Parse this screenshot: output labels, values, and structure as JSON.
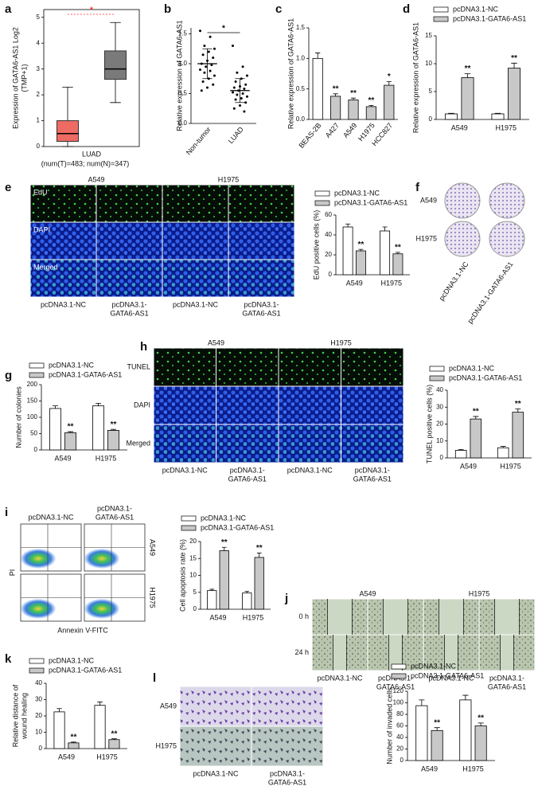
{
  "chart_data": [
    {
      "type": "box",
      "panel": "a",
      "ylabel": [
        "Expression of GATA6-AS1 Log2",
        "(TMP+1)"
      ],
      "xlabel": "LUAD",
      "subtitle": "(num(T)=483; num(N)=347)",
      "ylim": [
        0,
        5.3
      ],
      "yticks": [
        0,
        1,
        2,
        3,
        4,
        5
      ],
      "boxes": [
        {
          "color": "#ee6b63",
          "q1": 0.2,
          "median": 0.5,
          "q3": 1.0,
          "whisker_low": 0,
          "whisker_high": 2.3
        },
        {
          "color": "#7a7a7a",
          "q1": 2.6,
          "median": 3.0,
          "q3": 3.7,
          "whisker_low": 1.7,
          "whisker_high": 4.8
        }
      ],
      "significance": {
        "label": "*",
        "color": "#ff2a2a"
      }
    },
    {
      "type": "dot",
      "panel": "b",
      "ylabel": [
        "Relative expression of GATA6-AS1"
      ],
      "categories": [
        "Non-tumor",
        "LUAD"
      ],
      "ylim": [
        0,
        1.6
      ],
      "yticks": [
        {
          "value": 0,
          "label": "0.0"
        },
        {
          "value": 0.5,
          "label": "0.5"
        },
        {
          "value": 1,
          "label": "1.0"
        },
        {
          "value": 1.5,
          "label": "1.5"
        }
      ],
      "values": [
        1.0,
        0.55
      ],
      "errors": [
        0.25,
        0.2
      ],
      "points": [
        [
          1.55,
          1.45,
          1.3,
          1.25,
          1.2,
          1.15,
          1.1,
          1.05,
          1.0,
          0.98,
          0.95,
          0.9,
          0.88,
          0.85,
          0.8,
          0.75,
          0.7,
          0.65,
          0.6,
          0.55
        ],
        [
          1.3,
          0.95,
          0.85,
          0.8,
          0.75,
          0.7,
          0.65,
          0.62,
          0.6,
          0.58,
          0.55,
          0.52,
          0.5,
          0.48,
          0.45,
          0.42,
          0.4,
          0.35,
          0.3,
          0.25,
          0.2
        ]
      ],
      "significance": {
        "label": "*",
        "color": "#000000"
      }
    },
    {
      "type": "bar",
      "panel": "c",
      "ylabel": [
        "Relative expression of GATA6-AS1"
      ],
      "categories": [
        "BEAS-2B",
        "A427",
        "A549",
        "H1975",
        "HCC827"
      ],
      "ylim": [
        0,
        1.5
      ],
      "yticks": [
        {
          "value": 0,
          "label": "0.0"
        },
        {
          "value": 0.5,
          "label": "0.5"
        },
        {
          "value": 1,
          "label": "1.0"
        },
        {
          "value": 1.5,
          "label": "1.5"
        }
      ],
      "values": [
        1.0,
        0.38,
        0.32,
        0.21,
        0.56
      ],
      "errors": [
        0.09,
        0.04,
        0.03,
        0.02,
        0.06
      ],
      "colors": [
        "#ffffff",
        "#c8c8c8",
        "#c8c8c8",
        "#c8c8c8",
        "#c8c8c8"
      ],
      "annotations": [
        null,
        "**",
        "**",
        "**",
        "*"
      ]
    },
    {
      "type": "bar",
      "panel": "d",
      "ylabel": [
        "Relative expression of GATA6-AS1"
      ],
      "categories": [
        "A549",
        "H1975"
      ],
      "ylim": [
        0,
        15
      ],
      "yticks": [
        0,
        5,
        10,
        15
      ],
      "series": [
        {
          "name": "pcDNA3.1-NC",
          "color": "#ffffff",
          "values": [
            1.0,
            1.0
          ],
          "errors": [
            0.1,
            0.1
          ]
        },
        {
          "name": "pcDNA3.1-GATA6-AS1",
          "color": "#c8c8c8",
          "values": [
            7.5,
            9.2
          ],
          "errors": [
            0.7,
            0.9
          ],
          "annotations": [
            "**",
            "**"
          ]
        }
      ]
    },
    {
      "type": "bar",
      "ylabel": [
        "EdU positive cells (%)"
      ],
      "categories": [
        "A549",
        "H1975"
      ],
      "ylim": [
        0,
        60
      ],
      "yticks": [
        0,
        20,
        40,
        60
      ],
      "series": [
        {
          "name": "pcDNA3.1-NC",
          "color": "#ffffff",
          "values": [
            48,
            44
          ],
          "errors": [
            3,
            4
          ]
        },
        {
          "name": "pcDNA3.1-GATA6-AS1",
          "color": "#c8c8c8",
          "values": [
            24,
            21
          ],
          "errors": [
            1.5,
            1.5
          ],
          "annotations": [
            "**",
            "**"
          ]
        }
      ]
    },
    {
      "type": "bar",
      "panel": "g",
      "ylabel": [
        "Number of colonies"
      ],
      "categories": [
        "A549",
        "H1975"
      ],
      "ylim": [
        0,
        200
      ],
      "yticks": [
        0,
        50,
        100,
        150,
        200
      ],
      "series": [
        {
          "name": "pcDNA3.1-NC",
          "color": "#ffffff",
          "values": [
            127,
            135
          ],
          "errors": [
            8,
            8
          ]
        },
        {
          "name": "pcDNA3.1-GATA6-AS1",
          "color": "#c8c8c8",
          "values": [
            53,
            60
          ],
          "errors": [
            3,
            3
          ],
          "annotations": [
            "**",
            "**"
          ]
        }
      ]
    },
    {
      "type": "bar",
      "ylabel": [
        "TUNEL positive cells (%)"
      ],
      "categories": [
        "A549",
        "H1975"
      ],
      "ylim": [
        0,
        40
      ],
      "yticks": [
        0,
        10,
        20,
        30,
        40
      ],
      "series": [
        {
          "name": "pcDNA3.1-NC",
          "color": "#ffffff",
          "values": [
            4.5,
            6
          ],
          "errors": [
            0.5,
            0.8
          ]
        },
        {
          "name": "pcDNA3.1-GATA6-AS1",
          "color": "#c8c8c8",
          "values": [
            23,
            27
          ],
          "errors": [
            1.5,
            2
          ],
          "annotations": [
            "**",
            "**"
          ]
        }
      ]
    },
    {
      "type": "bar",
      "ylabel": [
        "Cell apoptosis rate (%)"
      ],
      "categories": [
        "A549",
        "H1975"
      ],
      "ylim": [
        0,
        20
      ],
      "yticks": [
        0,
        5,
        10,
        15,
        20
      ],
      "series": [
        {
          "name": "pcDNA3.1-NC",
          "color": "#ffffff",
          "values": [
            5.5,
            4.8
          ],
          "errors": [
            0.4,
            0.5
          ]
        },
        {
          "name": "pcDNA3.1-GATA6-AS1",
          "color": "#c8c8c8",
          "values": [
            17.3,
            15.3
          ],
          "errors": [
            1.0,
            1.3
          ],
          "annotations": [
            "**",
            "**"
          ]
        }
      ]
    },
    {
      "type": "bar",
      "panel": "k",
      "ylabel": [
        "Relative distance of",
        "wound healing"
      ],
      "categories": [
        "A549",
        "H1975"
      ],
      "ylim": [
        0,
        40
      ],
      "yticks": [
        0,
        10,
        20,
        30,
        40
      ],
      "series": [
        {
          "name": "pcDNA3.1-NC",
          "color": "#ffffff",
          "values": [
            22.5,
            26.5
          ],
          "errors": [
            2,
            2
          ]
        },
        {
          "name": "pcDNA3.1-GATA6-AS1",
          "color": "#c8c8c8",
          "values": [
            3.5,
            5.5
          ],
          "errors": [
            0.5,
            0.5
          ],
          "annotations": [
            "**",
            "**"
          ]
        }
      ]
    },
    {
      "type": "bar",
      "ylabel": [
        "Number of invaded cells"
      ],
      "categories": [
        "A549",
        "H1975"
      ],
      "ylim": [
        0,
        120
      ],
      "yticks": [
        0,
        20,
        40,
        60,
        80,
        100,
        120
      ],
      "series": [
        {
          "name": "pcDNA3.1-NC",
          "color": "#ffffff",
          "values": [
            95,
            105
          ],
          "errors": [
            10,
            8
          ]
        },
        {
          "name": "pcDNA3.1-GATA6-AS1",
          "color": "#c8c8c8",
          "values": [
            52,
            60
          ],
          "errors": [
            5,
            5
          ],
          "annotations": [
            "**",
            "**"
          ]
        }
      ]
    }
  ],
  "image_panels": [
    {
      "panel": "e",
      "groups": [
        "A549",
        "H1975"
      ],
      "rows": [
        "EdU",
        "DAPI",
        "Merged"
      ],
      "columns": [
        [
          "pcDNA3.1-NC"
        ],
        [
          "pcDNA3.1-",
          "GATA6-AS1"
        ],
        [
          "pcDNA3.1-NC"
        ],
        [
          "pcDNA3.1-",
          "GATA6-AS1"
        ]
      ]
    },
    {
      "panel": "f",
      "rows": [
        "A549",
        "H1975"
      ],
      "columns": [
        [
          "pcDNA3.1-NC"
        ],
        [
          "pcDNA3.1-GATA6-AS1"
        ]
      ]
    },
    {
      "panel": "h",
      "groups": [
        "A549",
        "H1975"
      ],
      "rows": [
        "TUNEL",
        "DAPI",
        "Merged"
      ],
      "columns": [
        [
          "pcDNA3.1-NC"
        ],
        [
          "pcDNA3.1-",
          "GATA6-AS1"
        ],
        [
          "pcDNA3.1-NC"
        ],
        [
          "pcDNA3.1-",
          "GATA6-AS1"
        ]
      ]
    },
    {
      "panel": "i",
      "rows": [
        "A549",
        "H1975"
      ],
      "columns": [
        [
          "pcDNA3.1-NC"
        ],
        [
          "pcDNA3.1-",
          "GATA6-AS1"
        ]
      ],
      "xlabel": "Annexin V-FITC",
      "ylabel": "PI"
    },
    {
      "panel": "j",
      "groups": [
        "A549",
        "H1975"
      ],
      "rows": [
        "0 h",
        "24 h"
      ],
      "columns": [
        [
          "pcDNA3.1-NC"
        ],
        [
          "pcDNA3.1-",
          "GATA6-AS1"
        ],
        [
          "pcDNA3.1-NC"
        ],
        [
          "pcDNA3.1-",
          "GATA6-AS1"
        ]
      ]
    },
    {
      "panel": "l",
      "rows": [
        "A549",
        "H1975"
      ],
      "columns": [
        [
          "pcDNA3.1-NC"
        ],
        [
          "pcDNA3.1-",
          "GATA6-AS1"
        ]
      ]
    }
  ]
}
